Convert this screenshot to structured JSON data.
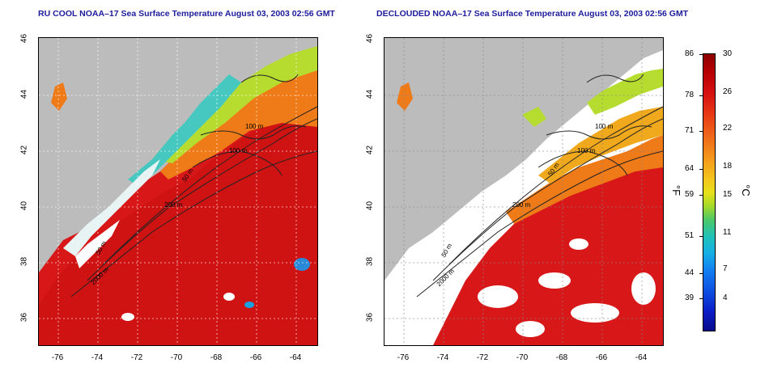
{
  "left_panel": {
    "title": "RU COOL NOAA–17 Sea Surface Temperature August 03, 2003 02:56 GMT",
    "depth_labels": [
      "100 m",
      "100 m",
      "50 m",
      "200 m",
      "50 m",
      "2000 m"
    ]
  },
  "right_panel": {
    "title": "DECLOUDED NOAA–17 Sea Surface Temperature August 03, 2003 02:56 GMT",
    "depth_labels": [
      "100 m",
      "100 m",
      "50 m",
      "200 m",
      "50 m",
      "2000 m"
    ]
  },
  "lat_ticks": [
    "46",
    "44",
    "42",
    "40",
    "38",
    "36"
  ],
  "lon_ticks": [
    "-76",
    "-74",
    "-72",
    "-70",
    "-68",
    "-66",
    "-64"
  ],
  "colorbar": {
    "fahrenheit_ticks": [
      "86",
      "78",
      "71",
      "64",
      "59",
      "51",
      "44",
      "39"
    ],
    "celsius_ticks": [
      "30",
      "26",
      "22",
      "18",
      "15",
      "11",
      "7",
      "4"
    ],
    "fahrenheit_unit": "°F",
    "celsius_unit": "°C"
  },
  "colors": {
    "land": "#bcbcbc",
    "warm": "#d81818",
    "title": "#1c1c9c"
  }
}
